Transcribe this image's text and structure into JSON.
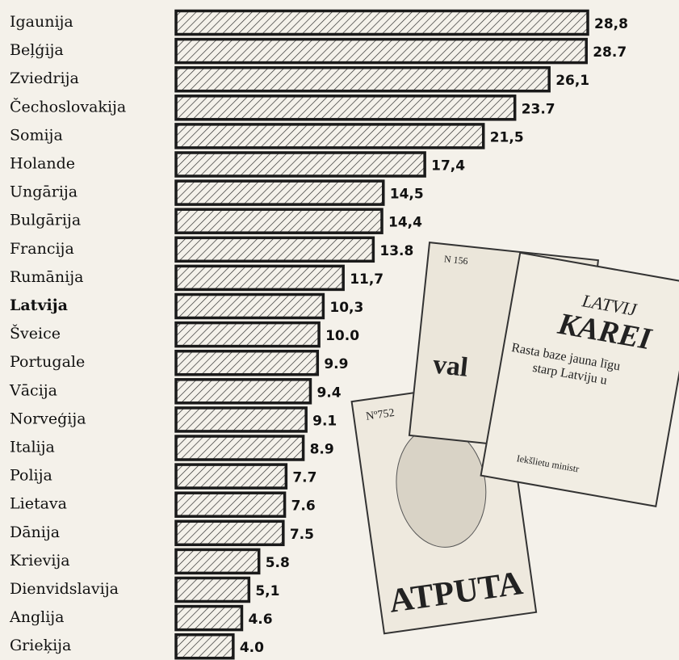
{
  "chart_data": {
    "type": "bar",
    "orientation": "horizontal",
    "color": "#1a1a1a",
    "categories": [
      "Igaunija",
      "Beļģija",
      "Zviedrija",
      "Čechoslovakija",
      "Somija",
      "Holande",
      "Ungārija",
      "Bulgārija",
      "Francija",
      "Rumānija",
      "Latvija",
      "Šveice",
      "Portugale",
      "Vācija",
      "Norveģija",
      "Italija",
      "Polija",
      "Lietava",
      "Dānija",
      "Krievija",
      "Dienvidslavija",
      "Anglija",
      "Grieķija"
    ],
    "values": [
      28.8,
      28.7,
      26.1,
      23.7,
      21.5,
      17.4,
      14.5,
      14.4,
      13.8,
      11.7,
      10.3,
      10.0,
      9.9,
      9.4,
      9.1,
      8.9,
      7.7,
      7.6,
      7.5,
      5.8,
      5.1,
      4.6,
      4.0
    ],
    "value_labels": [
      "28,8",
      "28.7",
      "26,1",
      "23.7",
      "21,5",
      "17,4",
      "14,5",
      "14,4",
      "13.8",
      "11,7",
      "10,3",
      "10.0",
      "9.9",
      "9.4",
      "9.1",
      "8.9",
      "7.7",
      "7.6",
      "7.5",
      "5.8",
      "5,1",
      "4.6",
      "4.0"
    ],
    "bold_categories": [
      "Latvija"
    ]
  },
  "illustration": {
    "texts": [
      "N 156",
      "val",
      "LATVIJ",
      "KAREI",
      "Rasta baze jauna līgu",
      "starp Latviju u",
      "Iekšlietu ministr",
      "Nº752",
      "ATPUTA"
    ]
  }
}
